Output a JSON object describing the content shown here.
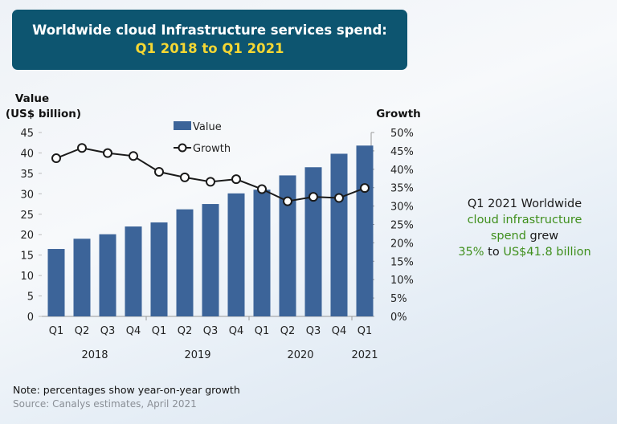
{
  "title": {
    "line1": "Worldwide cloud Infrastructure services spend:",
    "line2": "Q1 2018 to Q1 2021"
  },
  "callout": {
    "p1": "Q1 2021 Worldwide",
    "p2": "cloud infrastructure",
    "p3": "spend",
    "p4": " grew",
    "p5": "35%",
    "p6": " to ",
    "p7": "US$41.8 billion"
  },
  "note": "Note: percentages show year-on-year growth",
  "source": "Source: Canalys estimates, April 2021",
  "colors": {
    "bar": "#3c6499",
    "line": "#1a1a1a",
    "title_bg": "#0d5570",
    "title_accent": "#f5d733",
    "highlight": "#3f8f1c"
  },
  "chart_data": {
    "type": "bar+line",
    "ylabel_left": [
      "Value",
      "(US$ billion)"
    ],
    "ylabel_right": "Growth",
    "categories": [
      "Q1",
      "Q2",
      "Q3",
      "Q4",
      "Q1",
      "Q2",
      "Q3",
      "Q4",
      "Q1",
      "Q2",
      "Q3",
      "Q4",
      "Q1"
    ],
    "year_labels": [
      {
        "label": "2018",
        "from": 0,
        "to": 3
      },
      {
        "label": "2019",
        "from": 4,
        "to": 7
      },
      {
        "label": "2020",
        "from": 8,
        "to": 11
      },
      {
        "label": "2021",
        "from": 12,
        "to": 12
      }
    ],
    "series": [
      {
        "name": "Value",
        "type": "bar",
        "axis": "left",
        "values": [
          16.5,
          19.0,
          20.1,
          22.0,
          23.0,
          26.2,
          27.5,
          30.1,
          31.0,
          34.5,
          36.5,
          39.8,
          41.8
        ]
      },
      {
        "name": "Growth",
        "type": "line",
        "axis": "right",
        "values": [
          43.0,
          45.8,
          44.4,
          43.6,
          39.3,
          37.8,
          36.6,
          37.3,
          34.6,
          31.3,
          32.5,
          32.2,
          34.9
        ]
      }
    ],
    "ylim_left": [
      0,
      45
    ],
    "yticks_left": [
      0,
      5,
      10,
      15,
      20,
      25,
      30,
      35,
      40,
      45
    ],
    "ylim_right": [
      0,
      50
    ],
    "yticks_right": [
      "0%",
      "5%",
      "10%",
      "15%",
      "20%",
      "25%",
      "30%",
      "35%",
      "40%",
      "45%",
      "50%"
    ],
    "legend": "top-center",
    "grid": false
  }
}
